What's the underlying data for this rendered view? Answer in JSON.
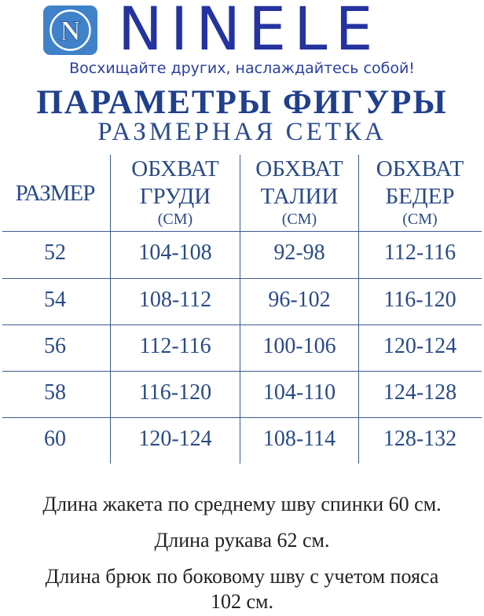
{
  "logo": {
    "brand": "NINELE",
    "icon_letter": "N",
    "slogan": "Восхищайте других, наслаждайтесь собой!"
  },
  "title": "ПАРАМЕТРЫ ФИГУРЫ",
  "subtitle": "РАЗМЕРНАЯ СЕТКА",
  "table": {
    "headers": [
      {
        "l1": "РАЗМЕР"
      },
      {
        "l1": "ОБХВАТ",
        "l2": "ГРУДИ",
        "unit": "(СМ)"
      },
      {
        "l1": "ОБХВАТ",
        "l2": "ТАЛИИ",
        "unit": "(СМ)"
      },
      {
        "l1": "ОБХВАТ",
        "l2": "БЕДЕР",
        "unit": "(СМ)"
      }
    ],
    "rows": [
      [
        "52",
        "104-108",
        "92-98",
        "112-116"
      ],
      [
        "54",
        "108-112",
        "96-102",
        "116-120"
      ],
      [
        "56",
        "112-116",
        "100-106",
        "120-124"
      ],
      [
        "58",
        "116-120",
        "104-110",
        "124-128"
      ],
      [
        "60",
        "120-124",
        "108-114",
        "128-132"
      ]
    ]
  },
  "notes": [
    "Длина жакета по среднему шву спинки 60 см.",
    "Длина рукава 62 см.",
    "Длина брюк по боковому шву с учетом пояса",
    "102 см."
  ],
  "colors": {
    "brand": "#2433a0",
    "icon": "#3f82c9",
    "table_text": "#2a4a86"
  }
}
